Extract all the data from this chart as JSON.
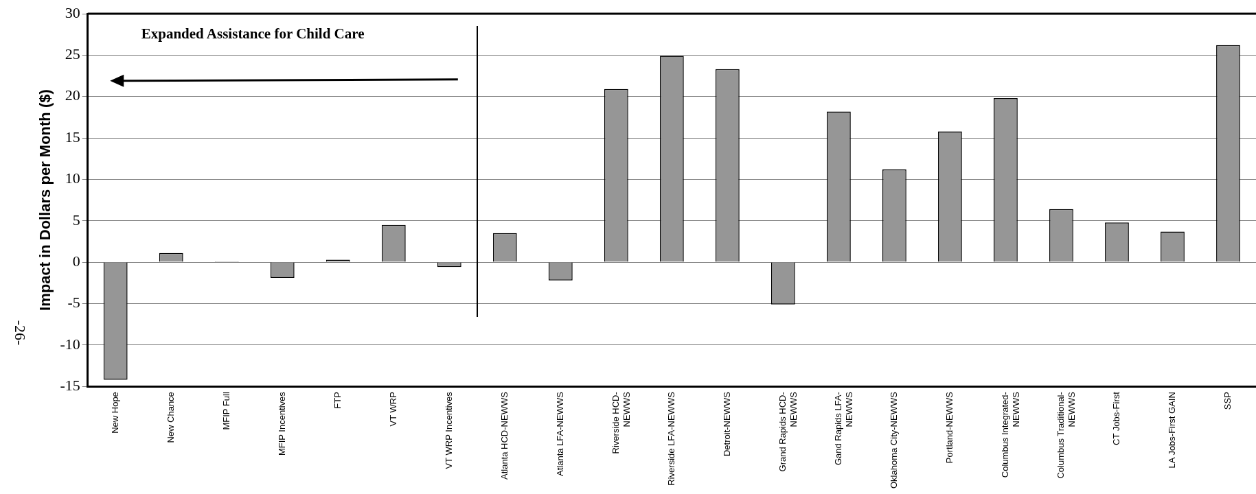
{
  "chart_data": {
    "type": "bar",
    "ylabel": "Impact in Dollars per Month ($)",
    "categories": [
      "New Hope",
      "New Chance",
      "MFIP Full",
      "MFIP Incentives",
      "FTP",
      "VT WRP",
      "VT WRP Incentives",
      "Atlanta HCD-NEWWS",
      "Atlanta LFA-NEWWS",
      "Riverside HCD-\nNEWWS",
      "Riverside LFA-NEWWS",
      "Detroit-NEWWS",
      "Grand Rapids HCD-\nNEWWS",
      "Gand Rapids LFA-\nNEWWS",
      "Oklahoma City-NEWWS",
      "Portland-NEWWS",
      "Columbus Integrated-\nNEWWS",
      "Columbus Traditional-\nNEWWS",
      "CT Jobs-First",
      "LA Jobs-First GAIN",
      "SSP"
    ],
    "values": [
      -14.2,
      1.1,
      0.1,
      -1.9,
      0.3,
      4.5,
      -0.6,
      3.5,
      -2.2,
      20.9,
      24.9,
      23.3,
      -5.1,
      18.2,
      11.2,
      15.8,
      19.8,
      6.4,
      4.8,
      3.7,
      26.2
    ],
    "color": "#969696",
    "ylim": [
      -15,
      30
    ],
    "yticks": [
      -15,
      -10,
      -5,
      0,
      5,
      10,
      15,
      20,
      25,
      30
    ],
    "grid": "y",
    "annotations": [
      "Expanded Assistance for Child Care",
      "-26-"
    ]
  }
}
